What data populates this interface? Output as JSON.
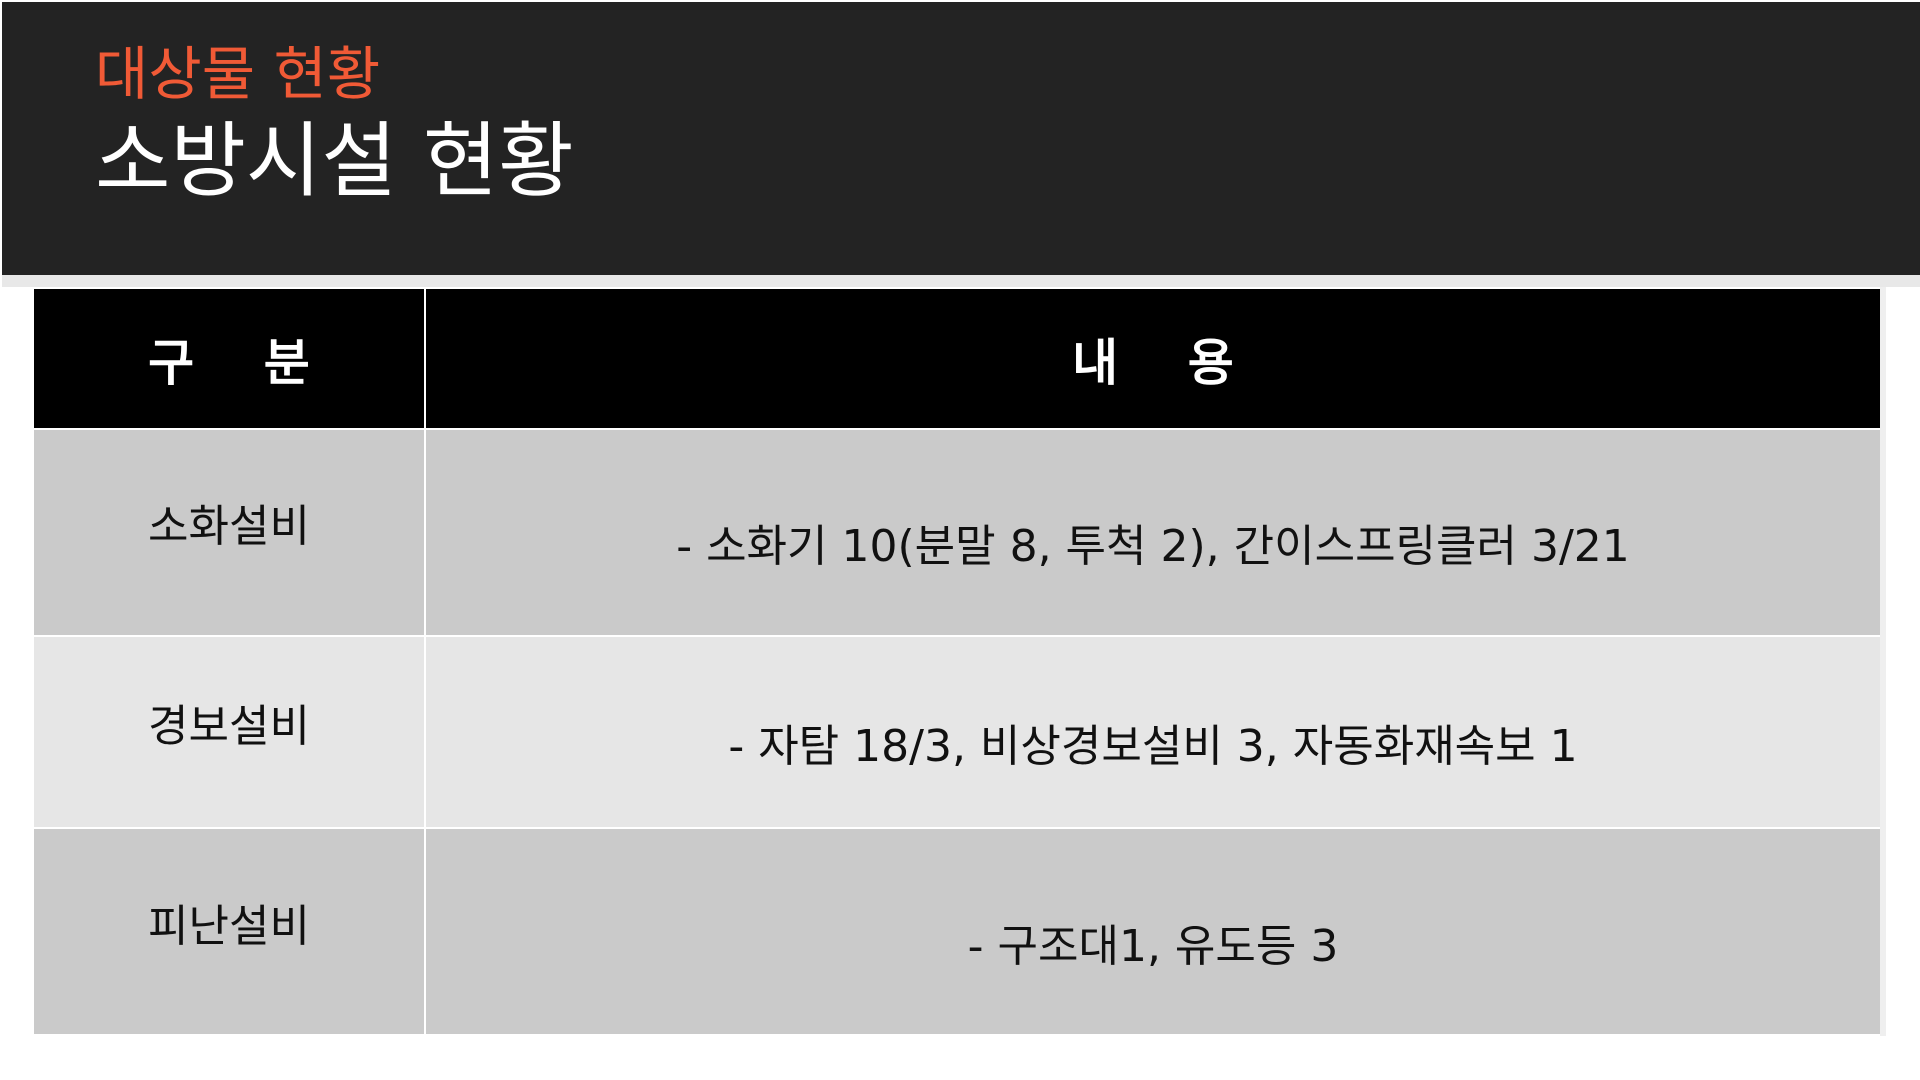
{
  "header": {
    "subtitle": "대상물 현황",
    "title": "소방시설 현황",
    "subtitle_color": "#f05a36",
    "background_color": "#232323"
  },
  "table": {
    "columns": [
      {
        "label": "구    분"
      },
      {
        "label": "내    용"
      }
    ],
    "rows": [
      {
        "category": "소화설비",
        "content": "- 소화기 10(분말 8, 투척 2), 간이스프링클러 3/21"
      },
      {
        "category": "경보설비",
        "content": "- 자탐 18/3, 비상경보설비 3, 자동화재속보 1"
      },
      {
        "category": "피난설비",
        "content": "- 구조대1, 유도등 3"
      }
    ],
    "header_color": "#000000",
    "row_colors": [
      "#cacaca",
      "#e6e6e6"
    ]
  }
}
